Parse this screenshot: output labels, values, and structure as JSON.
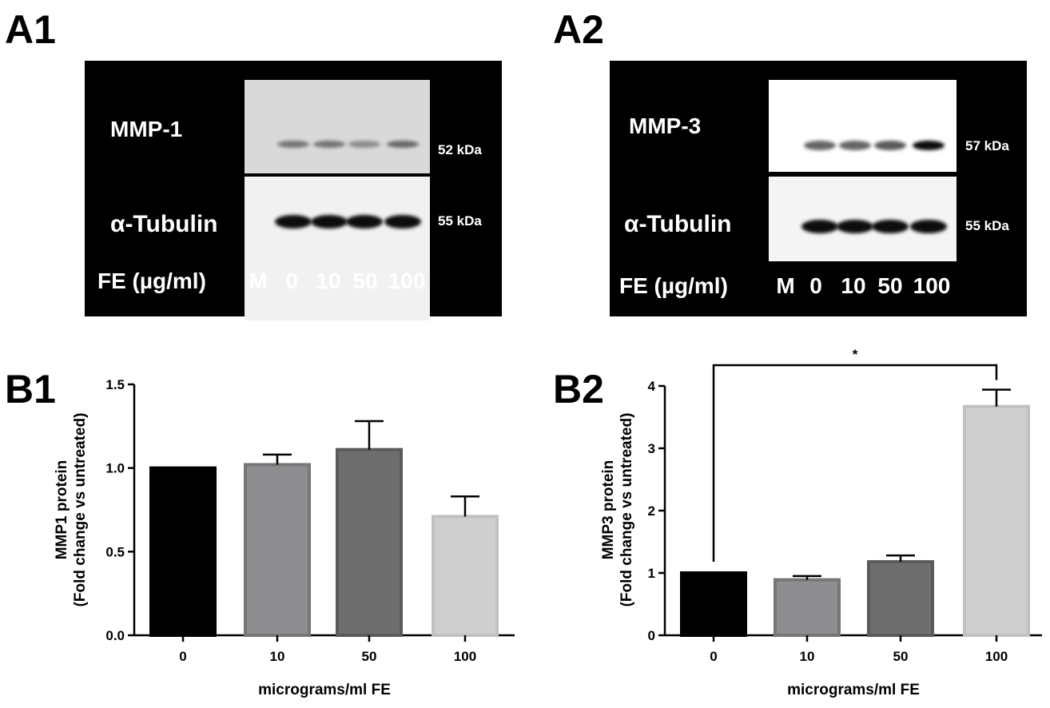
{
  "panels": {
    "a1": "A1",
    "a2": "A2",
    "b1": "B1",
    "b2": "B2"
  },
  "blots": [
    {
      "top_protein": "MMP-1",
      "top_kda": "52 kDa",
      "bottom_protein": "α-Tubulin",
      "bottom_kda": "55 kDa",
      "lane_title": "FE (µg/ml)",
      "lanes": [
        "M",
        "0",
        "10",
        "50",
        "100"
      ],
      "top_band_intensity": [
        0,
        0.55,
        0.55,
        0.45,
        0.6
      ],
      "bottom_band_intensity": [
        0,
        0.95,
        0.95,
        0.95,
        0.95
      ]
    },
    {
      "top_protein": "MMP-3",
      "top_kda": "57 kDa",
      "bottom_protein": "α-Tubulin",
      "bottom_kda": "55 kDa",
      "lane_title": "FE (µg/ml)",
      "lanes": [
        "M",
        "0",
        "10",
        "50",
        "100"
      ],
      "top_band_intensity": [
        0,
        0.6,
        0.6,
        0.65,
        0.95
      ],
      "bottom_band_intensity": [
        0,
        0.95,
        0.95,
        0.95,
        0.95
      ]
    }
  ],
  "chart_data": [
    {
      "type": "bar",
      "categories": [
        "0",
        "10",
        "50",
        "100"
      ],
      "values": [
        1.0,
        1.02,
        1.11,
        0.71
      ],
      "errors": [
        0.0,
        0.06,
        0.17,
        0.12
      ],
      "colors": [
        "#000000",
        "#8e8e90",
        "#6e6e6e",
        "#cfcfcf"
      ],
      "edge_colors": [
        "#000000",
        "#767678",
        "#5a5a5a",
        "#c0c0c0"
      ],
      "title": "",
      "xlabel": "micrograms/ml FE",
      "ylabel_line1": "MMP1 protein",
      "ylabel_line2": "(Fold change vs untreated)",
      "ylim": [
        0,
        1.5
      ],
      "yticks": [
        "0.0",
        "0.5",
        "1.0",
        "1.5"
      ],
      "ytick_values": [
        0,
        0.5,
        1.0,
        1.5
      ],
      "grid": false
    },
    {
      "type": "bar",
      "categories": [
        "0",
        "10",
        "50",
        "100"
      ],
      "values": [
        1.0,
        0.89,
        1.18,
        3.67
      ],
      "errors": [
        0.0,
        0.06,
        0.1,
        0.27
      ],
      "colors": [
        "#000000",
        "#8e8e90",
        "#6e6e6e",
        "#cfcfcf"
      ],
      "edge_colors": [
        "#000000",
        "#767678",
        "#5a5a5a",
        "#c0c0c0"
      ],
      "title": "",
      "xlabel": "micrograms/ml FE",
      "ylabel_line1": "MMP3 protein",
      "ylabel_line2": "(Fold change vs untreated)",
      "ylim": [
        0,
        4
      ],
      "yticks": [
        "0",
        "1",
        "2",
        "3",
        "4"
      ],
      "ytick_values": [
        0,
        1,
        2,
        3,
        4
      ],
      "grid": false,
      "significance": {
        "from": "0",
        "to": "100",
        "label": "*"
      }
    }
  ]
}
